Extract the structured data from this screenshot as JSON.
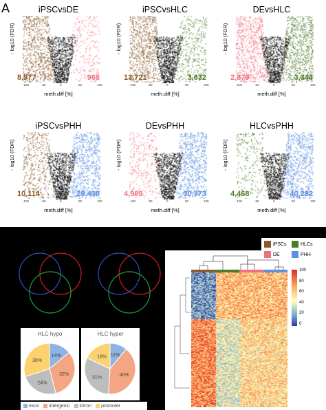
{
  "panel_letter": "A",
  "axis": {
    "ylabel": "- log10 (FDR)",
    "xlabel": "meth.diff [%]",
    "ticks": [
      "-100",
      "-50",
      "0",
      "50",
      "100"
    ]
  },
  "colors": {
    "ipscs": "#8B5A2B",
    "de": "#F07080",
    "hlcs": "#4F7A28",
    "phh": "#5B8FE0",
    "ns": "#000000"
  },
  "volcanoes": [
    {
      "title": "iPSCvsDE",
      "left_count": "8,977",
      "right_count": "968",
      "left_color": "#8B5A2B",
      "right_color": "#F07080"
    },
    {
      "title": "iPSCvsHLC",
      "left_count": "13,721",
      "right_count": "3,632",
      "left_color": "#8B5A2B",
      "right_color": "#4F7A28"
    },
    {
      "title": "DEvsHLC",
      "left_count": "2,879",
      "right_count": "3,344",
      "left_color": "#F07080",
      "right_color": "#4F7A28"
    },
    {
      "title": "iPSCvsPHH",
      "left_count": "10,114",
      "right_count": "29,430",
      "left_color": "#8B5A2B",
      "right_color": "#5B8FE0"
    },
    {
      "title": "DEvsPHH",
      "left_count": "4,989",
      "right_count": "30,773",
      "left_color": "#F07080",
      "right_color": "#5B8FE0"
    },
    {
      "title": "HLCvsPHH",
      "left_count": "4,468",
      "right_count": "40,282",
      "left_color": "#4F7A28",
      "right_color": "#5B8FE0"
    }
  ],
  "heatmap_legend": [
    {
      "label": "iPSCs",
      "color": "#8B5A2B"
    },
    {
      "label": "HLCs",
      "color": "#4F7A28"
    },
    {
      "label": "DE",
      "color": "#F07080"
    },
    {
      "label": "PHH",
      "color": "#5B8FE0"
    }
  ],
  "colorbar_ticks": [
    "100",
    "80",
    "60",
    "40",
    "20",
    "0"
  ],
  "pies": [
    {
      "title": "HLC hypo",
      "slices": [
        {
          "name": "exon",
          "value": 14,
          "color": "#8DB4E2"
        },
        {
          "name": "intergenic",
          "value": 32,
          "color": "#F4A582"
        },
        {
          "name": "intron",
          "value": 24,
          "color": "#BDBDBD"
        },
        {
          "name": "promoter",
          "value": 30,
          "color": "#FDD26E"
        }
      ],
      "labels": [
        "14%",
        "32%",
        "24%",
        "30%"
      ]
    },
    {
      "title": "HLC hyper",
      "slices": [
        {
          "name": "exon",
          "value": 11,
          "color": "#8DB4E2"
        },
        {
          "name": "intergenic",
          "value": 40,
          "color": "#F4A582"
        },
        {
          "name": "intron",
          "value": 31,
          "color": "#BDBDBD"
        },
        {
          "name": "promoter",
          "value": 18,
          "color": "#FDD26E"
        }
      ],
      "labels": [
        "11%",
        "40%",
        "31%",
        "18%"
      ]
    }
  ],
  "pie_legend": [
    {
      "label": "exon",
      "color": "#8DB4E2"
    },
    {
      "label": "intergenic",
      "color": "#F4A582"
    },
    {
      "label": "intron",
      "color": "#BDBDBD"
    },
    {
      "label": "promoter",
      "color": "#FDD26E"
    }
  ],
  "venn_colors": [
    "#3050C0",
    "#D02020",
    "#20A040"
  ]
}
